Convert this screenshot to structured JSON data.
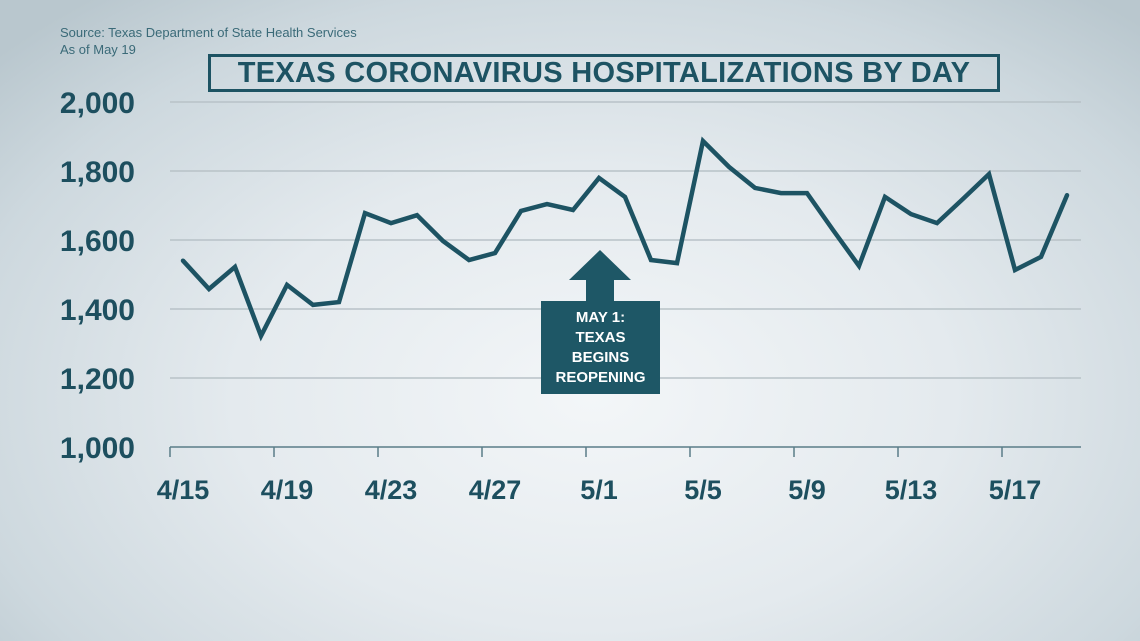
{
  "source": {
    "line1": "Source: Texas Department of State Health Services",
    "line2": "As of May 19"
  },
  "title": "TEXAS CORONAVIRUS HOSPITALIZATIONS BY DAY",
  "callout": {
    "lines": [
      "MAY 1:",
      "TEXAS",
      "BEGINS",
      "REOPENING"
    ],
    "color": "#1e5766"
  },
  "colors": {
    "line": "#1d5363",
    "grid": "#b8c2c7",
    "text": "#1d4f5f"
  },
  "chart_data": {
    "type": "line",
    "title": "TEXAS CORONAVIRUS HOSPITALIZATIONS BY DAY",
    "xlabel": "",
    "ylabel": "",
    "ylim": [
      1000,
      2000
    ],
    "yticks": [
      1000,
      1200,
      1400,
      1600,
      1800,
      2000
    ],
    "ytick_labels": [
      "1,000",
      "1,200",
      "1,400",
      "1,600",
      "1,800",
      "2,000"
    ],
    "xtick_labels": [
      "4/15",
      "4/19",
      "4/23",
      "4/27",
      "5/1",
      "5/5",
      "5/9",
      "5/13",
      "5/17"
    ],
    "grid": true,
    "legend": null,
    "x": [
      "4/15",
      "4/16",
      "4/17",
      "4/18",
      "4/19",
      "4/20",
      "4/21",
      "4/22",
      "4/23",
      "4/24",
      "4/25",
      "4/26",
      "4/27",
      "4/28",
      "4/29",
      "4/30",
      "5/1",
      "5/2",
      "5/3",
      "5/4",
      "5/5",
      "5/6",
      "5/7",
      "5/8",
      "5/9",
      "5/10",
      "5/11",
      "5/12",
      "5/13",
      "5/14",
      "5/15",
      "5/16",
      "5/17",
      "5/18",
      "5/19"
    ],
    "series": [
      {
        "name": "Hospitalizations",
        "values": [
          1540,
          1458,
          1522,
          1322,
          1470,
          1412,
          1420,
          1678,
          1649,
          1672,
          1597,
          1542,
          1562,
          1684,
          1704,
          1687,
          1780,
          1725,
          1542,
          1533,
          1887,
          1812,
          1751,
          1736,
          1736,
          1629,
          1525,
          1725,
          1675,
          1649,
          1719,
          1791,
          1513,
          1551,
          1730
        ]
      }
    ],
    "annotations": [
      {
        "x": "5/1",
        "text": "MAY 1: TEXAS BEGINS REOPENING",
        "type": "up-arrow"
      }
    ]
  }
}
